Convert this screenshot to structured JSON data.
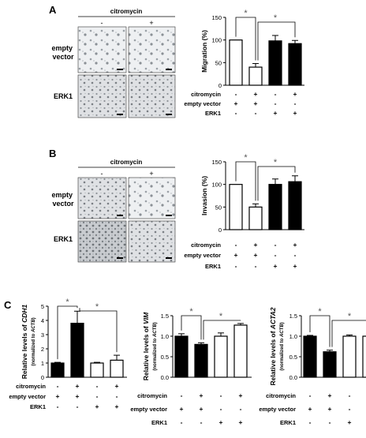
{
  "panels": {
    "A": {
      "letter": "A",
      "group_header": "citromycin",
      "col_minus": "-",
      "col_plus": "+",
      "rows": [
        "empty\nvector",
        "ERK1"
      ]
    },
    "B": {
      "letter": "B",
      "group_header": "citromycin",
      "col_minus": "-",
      "col_plus": "+",
      "rows": [
        "empty\nvector",
        "ERK1"
      ]
    },
    "C": {
      "letter": "C"
    }
  },
  "chart_data": [
    {
      "id": "A",
      "type": "bar",
      "ylabel": "Migration (%)",
      "ylim": [
        0,
        150
      ],
      "yticks": [
        0,
        50,
        100,
        150
      ],
      "values": [
        100,
        40,
        98,
        92
      ],
      "errors": [
        0,
        8,
        12,
        7
      ],
      "fills": [
        "#ffffff",
        "#ffffff",
        "#000000",
        "#000000"
      ],
      "significance": [
        "*",
        "*"
      ],
      "conditions": [
        {
          "label": "citromycin",
          "marks": [
            "-",
            "+",
            "-",
            "+"
          ]
        },
        {
          "label": "empty vector",
          "marks": [
            "+",
            "+",
            "-",
            "-"
          ]
        },
        {
          "label": "ERK1",
          "marks": [
            "-",
            "-",
            "+",
            "+"
          ]
        }
      ]
    },
    {
      "id": "B",
      "type": "bar",
      "ylabel": "Invasion (%)",
      "ylim": [
        0,
        150
      ],
      "yticks": [
        0,
        50,
        100,
        150
      ],
      "values": [
        100,
        50,
        100,
        106
      ],
      "errors": [
        0,
        7,
        12,
        13
      ],
      "fills": [
        "#ffffff",
        "#ffffff",
        "#000000",
        "#000000"
      ],
      "significance": [
        "*",
        "*"
      ],
      "conditions": [
        {
          "label": "citromycin",
          "marks": [
            "-",
            "+",
            "-",
            "+"
          ]
        },
        {
          "label": "empty vector",
          "marks": [
            "+",
            "+",
            "-",
            "-"
          ]
        },
        {
          "label": "ERK1",
          "marks": [
            "-",
            "-",
            "+",
            "+"
          ]
        }
      ]
    },
    {
      "id": "C1",
      "type": "bar",
      "ylabel_line1_pre": "Relative levels of ",
      "ylabel_line1_gene": "CDH1",
      "ylabel_line2_pre": "(normalized to ",
      "ylabel_line2_gene": "ACTB",
      "ylabel_line2_post": ")",
      "ylim": [
        0,
        5
      ],
      "yticks": [
        0,
        1,
        2,
        3,
        4,
        5
      ],
      "values": [
        1.0,
        3.8,
        1.0,
        1.2
      ],
      "errors": [
        0.05,
        0.85,
        0.05,
        0.35
      ],
      "fills": [
        "#000000",
        "#000000",
        "#ffffff",
        "#ffffff"
      ],
      "significance": [
        "*",
        "*"
      ],
      "conditions": [
        {
          "label": "citromycin",
          "marks": [
            "-",
            "+",
            "-",
            "+"
          ]
        },
        {
          "label": "empty vector",
          "marks": [
            "+",
            "+",
            "-",
            "-"
          ]
        },
        {
          "label": "ERK1",
          "marks": [
            "-",
            "-",
            "+",
            "+"
          ]
        }
      ]
    },
    {
      "id": "C2",
      "type": "bar",
      "ylabel_line1_pre": "Relative levels of ",
      "ylabel_line1_gene": "VIM",
      "ylabel_line2_pre": "(normalized to ",
      "ylabel_line2_gene": "ACTB",
      "ylabel_line2_post": ")",
      "ylim": [
        0.0,
        1.5
      ],
      "yticks": [
        0.0,
        0.5,
        1.0,
        1.5
      ],
      "ytick_labels": [
        "0.0",
        "0.5",
        "1.0",
        "1.5"
      ],
      "values": [
        1.0,
        0.8,
        1.0,
        1.27
      ],
      "errors": [
        0.06,
        0.04,
        0.08,
        0.04
      ],
      "fills": [
        "#000000",
        "#000000",
        "#ffffff",
        "#ffffff"
      ],
      "significance": [
        "*",
        "*"
      ],
      "conditions": [
        {
          "label": "citromycin",
          "marks": [
            "-",
            "+",
            "-",
            "+"
          ]
        },
        {
          "label": "empty vector",
          "marks": [
            "+",
            "+",
            "-",
            "-"
          ]
        },
        {
          "label": "ERK1",
          "marks": [
            "-",
            "-",
            "+",
            "+"
          ]
        }
      ]
    },
    {
      "id": "C3",
      "type": "bar",
      "ylabel_line1_pre": "Relative levels of ",
      "ylabel_line1_gene": "ACTA2",
      "ylabel_line2_pre": "(normalized to ",
      "ylabel_line2_gene": "ACTB",
      "ylabel_line2_post": ")",
      "ylim": [
        0.0,
        1.5
      ],
      "yticks": [
        0.0,
        0.5,
        1.0,
        1.5
      ],
      "ytick_labels": [
        "0.0",
        "0.5",
        "1.0",
        "1.5"
      ],
      "values": [
        1.0,
        0.62,
        1.0,
        1.0
      ],
      "errors": [
        0.02,
        0.04,
        0.03,
        0.06
      ],
      "fills": [
        "#000000",
        "#000000",
        "#ffffff",
        "#ffffff"
      ],
      "significance": [
        "*",
        "*"
      ],
      "conditions": [
        {
          "label": "citromycin",
          "marks": [
            "-",
            "+",
            "-",
            "+"
          ]
        },
        {
          "label": "empty vector",
          "marks": [
            "+",
            "+",
            "-",
            "-"
          ]
        },
        {
          "label": "ERK1",
          "marks": [
            "-",
            "-",
            "+",
            "+"
          ]
        }
      ]
    }
  ]
}
